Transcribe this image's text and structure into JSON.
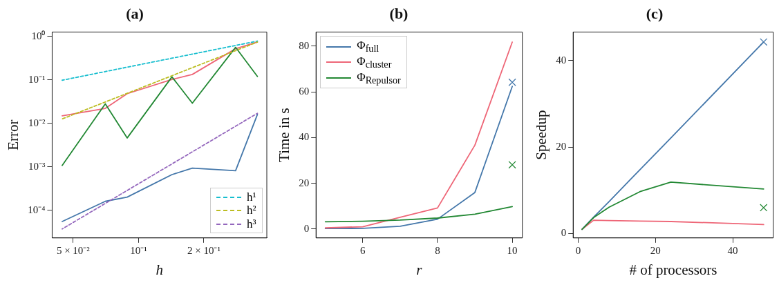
{
  "chart_data": [
    {
      "type": "line",
      "title": "(a)",
      "xlabel": "h",
      "ylabel": "Error",
      "log": "xy",
      "grid": false,
      "legend": "bottom right",
      "xlim": [
        0.04,
        0.39
      ],
      "xticks": [
        {
          "value": 0.05,
          "label": "5 × 10⁻²"
        },
        {
          "value": 0.1,
          "label": "10⁻¹"
        },
        {
          "value": 0.2,
          "label": "2 × 10⁻¹"
        }
      ],
      "ylim": [
        2.3e-05,
        1.26
      ],
      "yticks": [
        {
          "value": 0.0001,
          "label": "10⁻⁴"
        },
        {
          "value": 0.001,
          "label": "10⁻³"
        },
        {
          "value": 0.01,
          "label": "10⁻²"
        },
        {
          "value": 0.1,
          "label": "10⁻¹"
        },
        {
          "value": 1,
          "label": "10⁰"
        }
      ],
      "series": [
        {
          "color": "#4477aa",
          "x": [
            0.0445,
            0.0703,
            0.0887,
            0.1426,
            0.177,
            0.28,
            0.353
          ],
          "values": [
            5.5e-05,
            0.00016,
            0.0002,
            0.00066,
            0.00093,
            0.00081,
            0.016
          ]
        },
        {
          "color": "#ee6677",
          "x": [
            0.0445,
            0.0703,
            0.0887,
            0.1426,
            0.177,
            0.28,
            0.353
          ],
          "values": [
            0.0148,
            0.022,
            0.048,
            0.102,
            0.133,
            0.52,
            0.74
          ]
        },
        {
          "color": "#228833",
          "x": [
            0.0445,
            0.0703,
            0.0887,
            0.1426,
            0.177,
            0.28,
            0.353
          ],
          "values": [
            0.00107,
            0.028,
            0.0046,
            0.117,
            0.029,
            0.56,
            0.12
          ]
        },
        {
          "name": "h¹",
          "color": "#17becf",
          "line_style": "dashed",
          "x": [
            0.0445,
            0.353
          ],
          "values": [
            0.098,
            0.78
          ]
        },
        {
          "name": "h²",
          "color": "#bcbd22",
          "line_style": "dashed",
          "x": [
            0.0445,
            0.353
          ],
          "values": [
            0.0126,
            0.74
          ]
        },
        {
          "name": "h³",
          "color": "#9467bd",
          "line_style": "dashed",
          "x": [
            0.0445,
            0.353
          ],
          "values": [
            3.7e-05,
            0.017
          ]
        }
      ]
    },
    {
      "type": "line",
      "title": "(b)",
      "xlabel": "r",
      "ylabel": "Time in s",
      "grid": false,
      "legend": "top left",
      "xlim": [
        4.75,
        10.27
      ],
      "xticks": [
        6,
        8,
        10
      ],
      "ylim": [
        -3.9,
        86.2
      ],
      "yticks": [
        0,
        20,
        40,
        60,
        80
      ],
      "series": [
        {
          "name": "Φ$_{full}$",
          "color": "#4477aa",
          "x": [
            5,
            6,
            7,
            8,
            9,
            10
          ],
          "values": [
            0.2,
            0.3,
            1.2,
            4.3,
            16,
            62.4
          ]
        },
        {
          "name": "Φ$_{cluster}$",
          "color": "#ee6677",
          "x": [
            5,
            6,
            7,
            8,
            9,
            10
          ],
          "values": [
            0.5,
            1.0,
            5.1,
            9.2,
            36.7,
            81.8
          ]
        },
        {
          "name": "Φ$_{Repulsor}$",
          "color": "#228833",
          "x": [
            5,
            6,
            7,
            8,
            9,
            10
          ],
          "values": [
            3.2,
            3.4,
            3.9,
            4.8,
            6.5,
            9.8
          ]
        },
        {
          "type": "scatter",
          "marker": "cross",
          "color": "#4477aa",
          "x": [
            10
          ],
          "values": [
            64.2
          ]
        },
        {
          "type": "scatter",
          "marker": "cross",
          "color": "#228833",
          "x": [
            10
          ],
          "values": [
            28.1
          ]
        }
      ]
    },
    {
      "type": "line",
      "title": "(c)",
      "xlabel": "# of processors",
      "ylabel": "Speedup",
      "grid": false,
      "xlim": [
        -1.3,
        50.5
      ],
      "xticks": [
        0,
        20,
        40
      ],
      "ylim": [
        -1.0,
        46.6
      ],
      "yticks": [
        0,
        20,
        40
      ],
      "series": [
        {
          "color": "#4477aa",
          "x": [
            1,
            4,
            8,
            16,
            24,
            48
          ],
          "values": [
            1,
            3.8,
            7.4,
            14.8,
            22.1,
            44.3
          ]
        },
        {
          "color": "#ee6677",
          "x": [
            1,
            4,
            8,
            16,
            24,
            48
          ],
          "values": [
            1,
            3.1,
            3.0,
            2.9,
            2.8,
            2.1
          ]
        },
        {
          "color": "#228833",
          "x": [
            1,
            4,
            8,
            16,
            24,
            48
          ],
          "values": [
            1,
            3.7,
            6.1,
            9.7,
            11.9,
            10.3
          ]
        },
        {
          "type": "scatter",
          "marker": "cross",
          "color": "#4477aa",
          "x": [
            48
          ],
          "values": [
            44.3
          ]
        },
        {
          "type": "scatter",
          "marker": "cross",
          "color": "#228833",
          "x": [
            48
          ],
          "values": [
            6.0
          ]
        }
      ]
    }
  ]
}
